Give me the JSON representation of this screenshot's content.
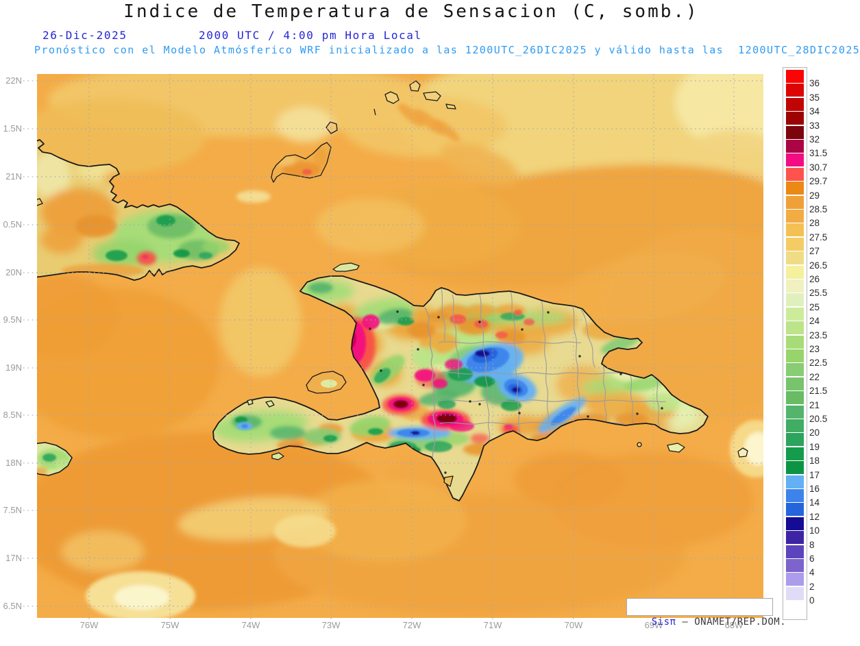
{
  "header": {
    "title": "Indice de Temperatura de Sensacion (C, somb.)",
    "date": "26-Dic-2025",
    "time": "2000 UTC / 4:00 pm Hora Local",
    "forecast": "Pronóstico con el Modelo Atmósferico WRF inicializado a las 1200UTC_26DIC2025 y válido hasta las  1200UTC_28DIC2025"
  },
  "axes": {
    "lat_labels": [
      "22N",
      "1.5N",
      "21N",
      "0.5N",
      "20N",
      "9.5N",
      "19N",
      "8.5N",
      "18N",
      "7.5N",
      "17N",
      "6.5N"
    ],
    "lon_labels": [
      "76W",
      "75W",
      "74W",
      "73W",
      "72W",
      "71W",
      "70W",
      "69W",
      "68W"
    ]
  },
  "colorbar": {
    "unit": "C",
    "tick_labels": [
      "36",
      "35",
      "34",
      "33",
      "32",
      "31.5",
      "30.7",
      "29.7",
      "29",
      "28.5",
      "28",
      "27.5",
      "27",
      "26.5",
      "26",
      "25.5",
      "25",
      "24",
      "23.5",
      "23",
      "22.5",
      "22",
      "21.5",
      "21",
      "20.5",
      "20",
      "19",
      "18",
      "17",
      "16",
      "14",
      "12",
      "10",
      "8",
      "6",
      "4",
      "2",
      "0"
    ],
    "cell_colors": [
      "#FC0404",
      "#DC0404",
      "#C00404",
      "#9C0404",
      "#7C040C",
      "#AC0444",
      "#F40C84",
      "#FC544C",
      "#EC8814",
      "#F0A038",
      "#F2AC44",
      "#F4C054",
      "#F4CC64",
      "#F0DC84",
      "#F4F09C",
      "#F0F0C0",
      "#E0F0BC",
      "#CCEC9C",
      "#BCE488",
      "#A8DC78",
      "#98D46C",
      "#88CC74",
      "#78C46C",
      "#68BC64",
      "#54B46C",
      "#40AC64",
      "#2CA45C",
      "#149C4C",
      "#0C9444",
      "#64B0F4",
      "#3C84EC",
      "#2464DC",
      "#140C94",
      "#3C24A4",
      "#5C44BC",
      "#7C64CC",
      "#AC9CEC",
      "#E0DCF8",
      "#FFFFFF"
    ]
  },
  "attribution": {
    "brand": "Sisπ",
    "rest": " – ONAMET/REP.DOM."
  },
  "chart_data": {
    "type": "heatmap",
    "title": "Indice de Temperatura de Sensacion (C, somb.)",
    "valid_time": "26-Dic-2025 2000 UTC / 4:00 pm Hora Local",
    "model_note": "Pronóstico con el Modelo Atmósferico WRF inicializado a las 1200UTC_26DIC2025 y válido hasta las 1200UTC_28DIC2025",
    "x_ticks": [
      "76W",
      "75W",
      "74W",
      "73W",
      "72W",
      "71W",
      "70W",
      "69W",
      "68W"
    ],
    "y_ticks": [
      "22N",
      "1.5N",
      "21N",
      "0.5N",
      "20N",
      "9.5N",
      "19N",
      "8.5N",
      "18N",
      "7.5N",
      "17N",
      "6.5N"
    ],
    "scale_values": [
      36,
      35,
      34,
      33,
      32,
      31.5,
      30.7,
      29.7,
      29,
      28.5,
      28,
      27.5,
      27,
      26.5,
      26,
      25.5,
      25,
      24,
      23.5,
      23,
      22.5,
      22,
      21.5,
      21,
      20.5,
      20,
      19,
      18,
      17,
      16,
      14,
      12,
      10,
      8,
      6,
      4,
      2,
      0
    ],
    "legend_position": "right"
  }
}
